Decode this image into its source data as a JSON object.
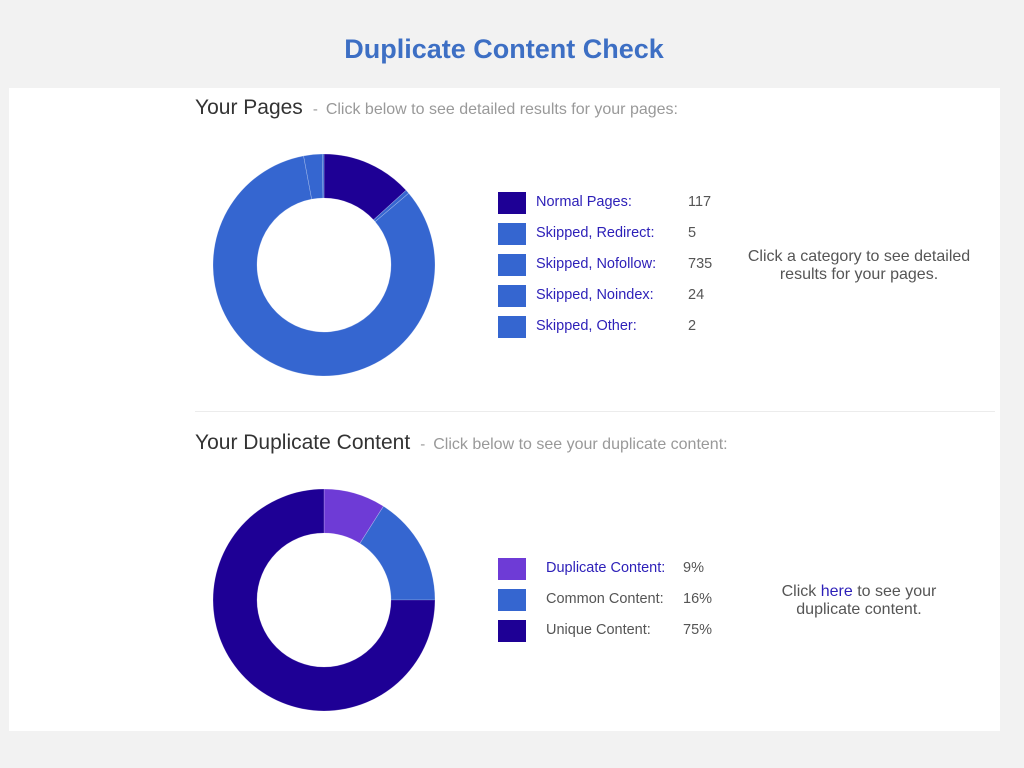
{
  "page": {
    "title": "Duplicate Content Check"
  },
  "pages_section": {
    "heading": "Your Pages",
    "separator": "-",
    "subheading": "Click below to see detailed results for your pages:",
    "hint": "Click a category to see detailed results for your pages.",
    "legend": [
      {
        "label": "Normal Pages:",
        "value": "117",
        "color": "#1e0095"
      },
      {
        "label": "Skipped, Redirect:",
        "value": "5",
        "color": "#3566d0"
      },
      {
        "label": "Skipped, Nofollow:",
        "value": "735",
        "color": "#3566d0"
      },
      {
        "label": "Skipped, Noindex:",
        "value": "24",
        "color": "#3566d0"
      },
      {
        "label": "Skipped, Other:",
        "value": "2",
        "color": "#3566d0"
      }
    ]
  },
  "duplicate_section": {
    "heading": "Your Duplicate Content",
    "separator": "-",
    "subheading": "Click below to see your duplicate content:",
    "hint_before": "Click ",
    "hint_link": "here",
    "hint_after": " to see your duplicate content.",
    "legend": [
      {
        "label": "Duplicate Content:",
        "value": "9%",
        "color": "#6e3bd6",
        "link": true
      },
      {
        "label": "Common Content:",
        "value": "16%",
        "color": "#3566d0",
        "link": false
      },
      {
        "label": "Unique Content:",
        "value": "75%",
        "color": "#1e0095",
        "link": false
      }
    ]
  },
  "chart_data": [
    {
      "type": "pie",
      "title": "Your Pages",
      "categories": [
        "Normal Pages",
        "Skipped, Redirect",
        "Skipped, Nofollow",
        "Skipped, Noindex",
        "Skipped, Other"
      ],
      "values": [
        117,
        5,
        735,
        24,
        2
      ],
      "colors": [
        "#1e0095",
        "#3566d0",
        "#3566d0",
        "#3566d0",
        "#3566d0"
      ],
      "donut": true
    },
    {
      "type": "pie",
      "title": "Your Duplicate Content",
      "categories": [
        "Duplicate Content",
        "Common Content",
        "Unique Content"
      ],
      "values": [
        9,
        16,
        75
      ],
      "colors": [
        "#6e3bd6",
        "#3566d0",
        "#1e0095"
      ],
      "donut": true
    }
  ]
}
